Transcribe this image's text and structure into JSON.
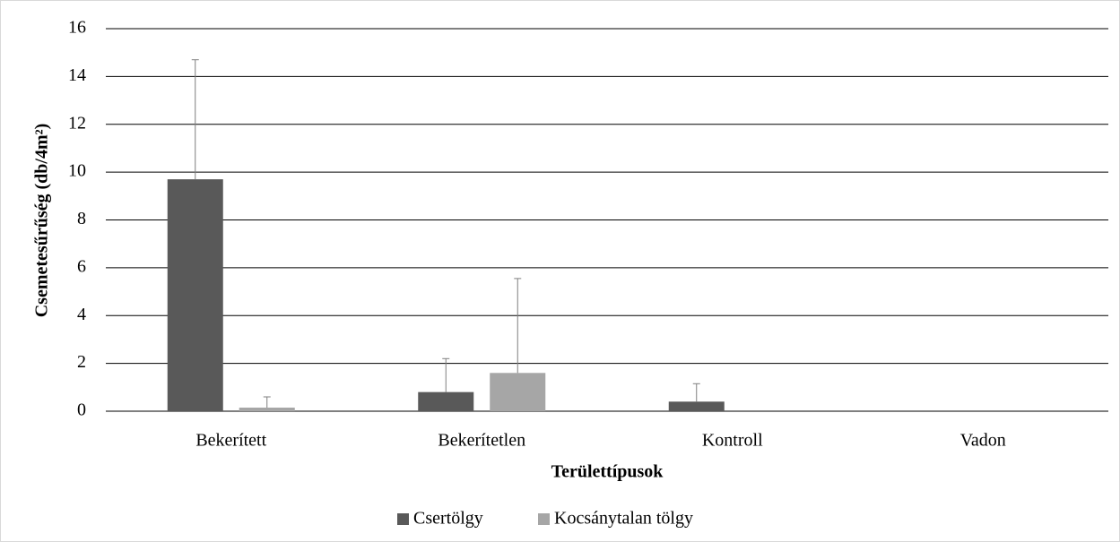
{
  "chart_data": {
    "type": "bar",
    "categories": [
      "Bekerített",
      "Bekerítetlen",
      "Kontroll",
      "Vadon"
    ],
    "series": [
      {
        "name": "Csertölgy",
        "color": "#595959",
        "values": [
          9.7,
          0.8,
          0.4,
          0
        ],
        "errors": [
          5.0,
          1.4,
          0.75,
          0
        ]
      },
      {
        "name": "Kocsánytalan tölgy",
        "color": "#a6a6a6",
        "values": [
          0.15,
          1.6,
          0,
          0
        ],
        "errors": [
          0.45,
          3.95,
          0,
          0
        ]
      }
    ],
    "ylabel": "Csemetesűrűség  (db/4m²)",
    "xlabel": "Területtípusok",
    "ylim": [
      0,
      16
    ],
    "yticks": [
      0,
      2,
      4,
      6,
      8,
      10,
      12,
      14,
      16
    ],
    "grid": true,
    "legend": "bottom"
  }
}
